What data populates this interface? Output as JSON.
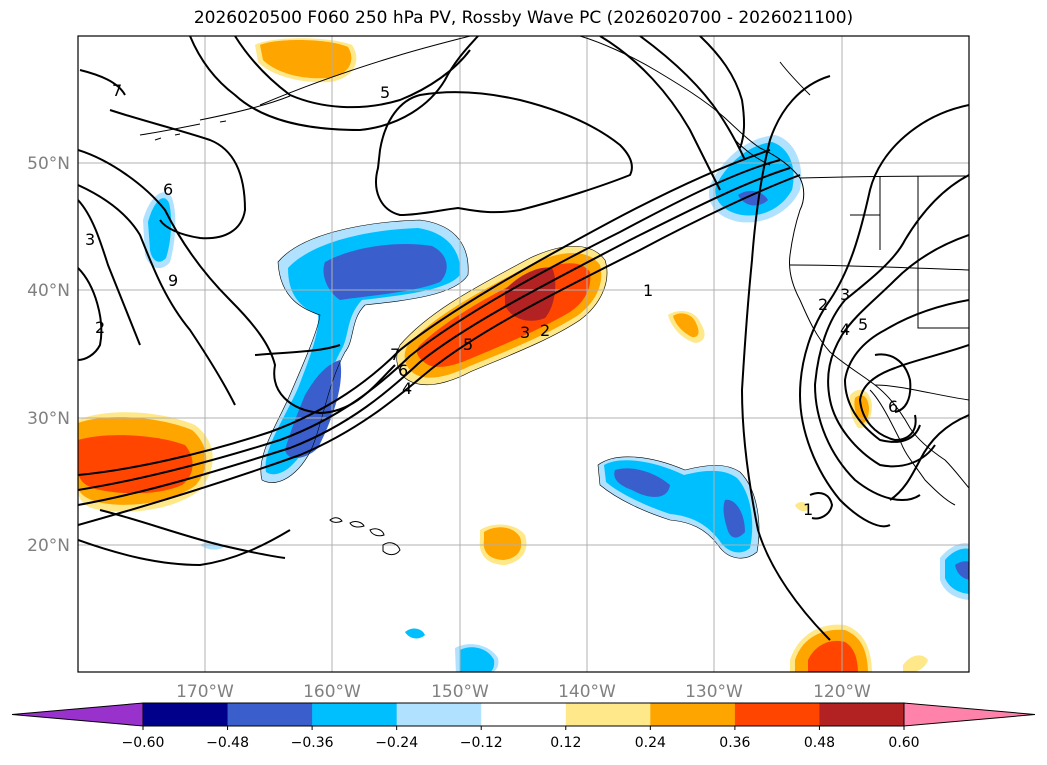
{
  "title": "2026020500 F060 250 hPa PV, Rossby Wave PC (2026020700 - 2026021100)",
  "map": {
    "lon_labels": [
      "170°W",
      "160°W",
      "150°W",
      "140°W",
      "130°W",
      "120°W"
    ],
    "lat_labels": [
      "50°N",
      "40°N",
      "30°N",
      "20°N"
    ],
    "contour_labels": [
      "7",
      "5",
      "6",
      "3",
      "9",
      "2",
      "7",
      "6",
      "4",
      "5",
      "3",
      "2",
      "1",
      "2",
      "3",
      "4",
      "5",
      "6",
      "1"
    ]
  },
  "colorbar": {
    "ticks": [
      "−0.60",
      "−0.48",
      "−0.36",
      "−0.24",
      "−0.12",
      "0.12",
      "0.24",
      "0.36",
      "0.48",
      "0.60"
    ],
    "colors": [
      "#9932cc",
      "#00008b",
      "#3a5fcd",
      "#00bfff",
      "#b0e2ff",
      "#ffffff",
      "#ffe88a",
      "#ffa500",
      "#ff4500",
      "#b22222",
      "#ff82ab"
    ]
  }
}
